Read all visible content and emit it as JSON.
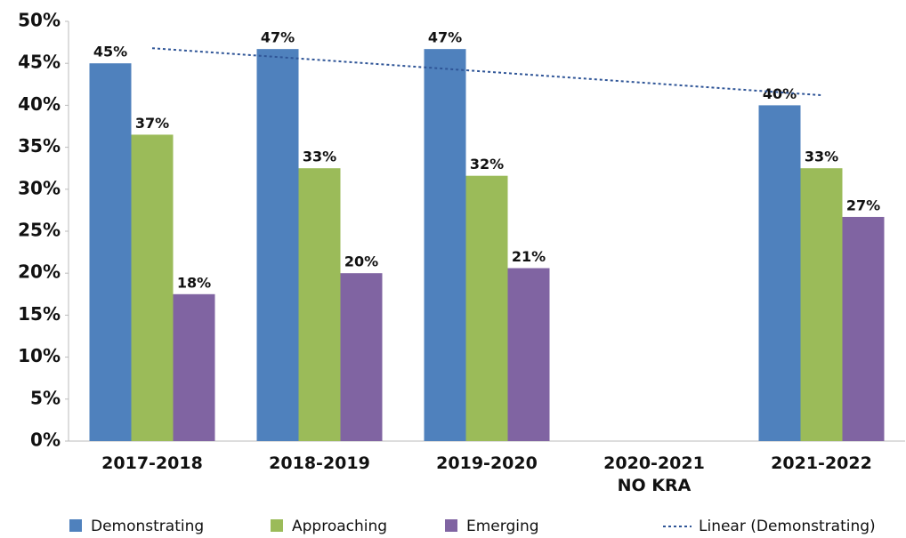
{
  "chart_data": {
    "type": "bar",
    "categories": [
      "2017-2018",
      "2018-2019",
      "2019-2020",
      "2020-2021\nNO KRA",
      "2021-2022"
    ],
    "series": [
      {
        "name": "Demonstrating",
        "color": "#4f81bd",
        "values": [
          45,
          46.7,
          46.7,
          null,
          40
        ],
        "value_labels": [
          "45%",
          "47%",
          "47%",
          null,
          "40%"
        ]
      },
      {
        "name": "Approaching",
        "color": "#9bbb59",
        "values": [
          36.5,
          32.5,
          31.6,
          null,
          32.5
        ],
        "value_labels": [
          "37%",
          "33%",
          "32%",
          null,
          "33%"
        ]
      },
      {
        "name": "Emerging",
        "color": "#8064a2",
        "values": [
          17.5,
          20,
          20.6,
          null,
          26.7
        ],
        "value_labels": [
          "18%",
          "20%",
          "21%",
          null,
          "27%"
        ]
      }
    ],
    "trendline": {
      "name": "Linear (Demonstrating)",
      "color": "#2f5597",
      "from": 46.8,
      "to": 41.2
    },
    "ylim": [
      0,
      50
    ],
    "yticks": [
      {
        "value": 0,
        "label": "0%"
      },
      {
        "value": 5,
        "label": "5%"
      },
      {
        "value": 10,
        "label": "10%"
      },
      {
        "value": 15,
        "label": "15%"
      },
      {
        "value": 20,
        "label": "20%"
      },
      {
        "value": 25,
        "label": "25%"
      },
      {
        "value": 30,
        "label": "30%"
      },
      {
        "value": 35,
        "label": "35%"
      },
      {
        "value": 40,
        "label": "40%"
      },
      {
        "value": 45,
        "label": "45%"
      },
      {
        "value": 50,
        "label": "50%"
      }
    ],
    "legend": "bottom"
  }
}
